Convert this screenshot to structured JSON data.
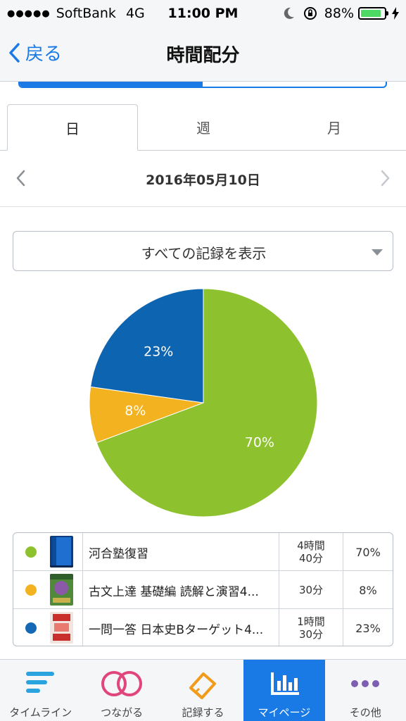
{
  "status_bar": {
    "signal_dots": "●●●●●",
    "carrier": "SoftBank",
    "network": "4G",
    "time": "11:00 PM",
    "battery_percent": "88%",
    "battery_level": 0.88
  },
  "nav": {
    "back_label": "戻る",
    "title": "時間配分"
  },
  "period_tabs": [
    {
      "label": "日",
      "active": true
    },
    {
      "label": "週",
      "active": false
    },
    {
      "label": "月",
      "active": false
    }
  ],
  "date": {
    "text": "2016年05月10日"
  },
  "filter": {
    "selected": "すべての記録を表示"
  },
  "chart_data": {
    "type": "pie",
    "slices": [
      {
        "label": "河合塾復習",
        "value": 70,
        "display": "70%",
        "color": "#8dc22e"
      },
      {
        "label": "古文上達 基礎編 読解と演習4...",
        "value": 8,
        "display": "8%",
        "color": "#f3b21f"
      },
      {
        "label": "一問一答 日本史Bターゲット4...",
        "value": 23,
        "display": "23%",
        "color": "#0d64b0"
      }
    ]
  },
  "records": [
    {
      "title": "河合塾復習",
      "time_line1": "4時間",
      "time_line2": "40分",
      "percent": "70%",
      "color": "#8dc22e"
    },
    {
      "title": "古文上達 基礎編 読解と演習4...",
      "time_line1": "30分",
      "time_line2": "",
      "percent": "8%",
      "color": "#f3b21f"
    },
    {
      "title": "一問一答 日本史Bターゲット4...",
      "time_line1": "1時間",
      "time_line2": "30分",
      "percent": "23%",
      "color": "#1468b4"
    }
  ],
  "tab_bar": [
    {
      "label": "タイムライン",
      "icon": "timeline-icon",
      "active": false
    },
    {
      "label": "つながる",
      "icon": "connect-icon",
      "active": false
    },
    {
      "label": "記録する",
      "icon": "record-icon",
      "active": false
    },
    {
      "label": "マイページ",
      "icon": "mypage-chart-icon",
      "active": true
    },
    {
      "label": "その他",
      "icon": "more-icon",
      "active": false
    }
  ]
}
